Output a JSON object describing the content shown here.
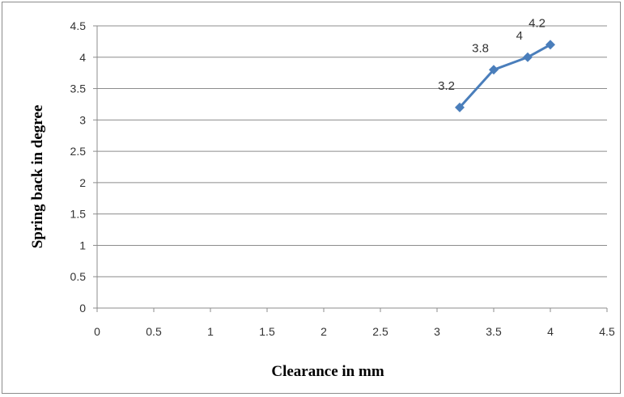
{
  "chart_data": {
    "type": "line",
    "title": "",
    "xlabel": "Clearance in mm",
    "ylabel": "Spring back in degree",
    "xlim": [
      0,
      4.5
    ],
    "ylim": [
      0,
      4.5
    ],
    "x_ticks": [
      "0",
      "0.5",
      "1",
      "1.5",
      "2",
      "2.5",
      "3",
      "3.5",
      "4",
      "4.5"
    ],
    "y_ticks": [
      "0",
      "0.5",
      "1",
      "1.5",
      "2",
      "2.5",
      "3",
      "3.5",
      "4",
      "4.5"
    ],
    "grid": "horizontal",
    "legend": "none",
    "series": [
      {
        "color": "#4a7ebb",
        "marker": "diamond",
        "points": [
          {
            "x": 3.2,
            "y": 3.2,
            "label": "3.2"
          },
          {
            "x": 3.5,
            "y": 3.8,
            "label": "3.8"
          },
          {
            "x": 3.8,
            "y": 4.0,
            "label": "4"
          },
          {
            "x": 4.0,
            "y": 4.2,
            "label": "4.2"
          }
        ]
      }
    ]
  }
}
